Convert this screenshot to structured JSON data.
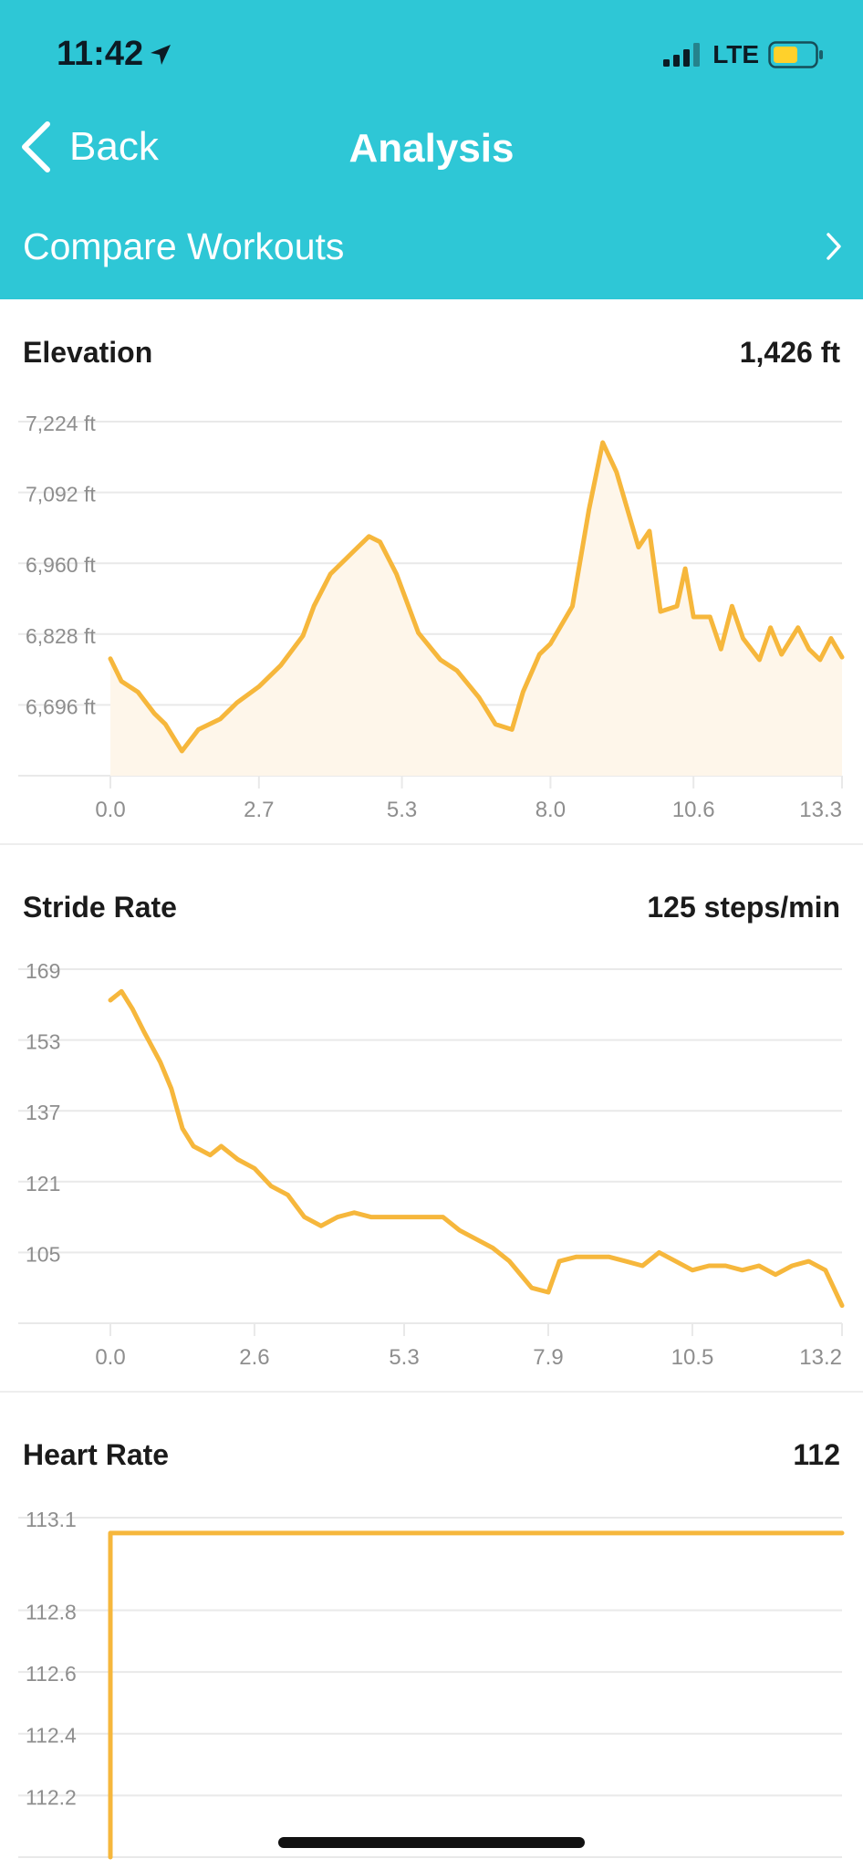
{
  "status_bar": {
    "time": "11:42",
    "network": "LTE"
  },
  "nav": {
    "back_label": "Back",
    "title": "Analysis"
  },
  "compare": {
    "label": "Compare Workouts"
  },
  "colors": {
    "header": "#2ec7d6",
    "series": "#f6b73c",
    "fill": "#fef6ea",
    "grid": "#e9e9e9"
  },
  "charts": {
    "elevation": {
      "title": "Elevation",
      "value": "1,426 ft"
    },
    "stride": {
      "title": "Stride Rate",
      "value": "125 steps/min"
    },
    "heart": {
      "title": "Heart Rate",
      "value": "112"
    }
  },
  "chart_data": [
    {
      "type": "area",
      "title": "Elevation",
      "summary": "1,426 ft",
      "ylim": [
        6564,
        7224
      ],
      "y_ticks": [
        7224,
        7092,
        6960,
        6828,
        6696
      ],
      "y_tick_labels": [
        "7,224 ft",
        "7,092 ft",
        "6,960 ft",
        "6,828 ft",
        "6,696 ft"
      ],
      "xlim": [
        0,
        13.3
      ],
      "x_ticks": [
        0.0,
        2.7,
        5.3,
        8.0,
        10.6,
        13.3
      ],
      "x_tick_labels": [
        "0.0",
        "2.7",
        "5.3",
        "8.0",
        "10.6",
        "13.3"
      ],
      "grid": true,
      "x": [
        0,
        0.2,
        0.5,
        0.8,
        1.0,
        1.3,
        1.6,
        2.0,
        2.3,
        2.7,
        3.1,
        3.5,
        3.7,
        4.0,
        4.4,
        4.7,
        4.9,
        5.2,
        5.6,
        6.0,
        6.3,
        6.7,
        7.0,
        7.3,
        7.5,
        7.8,
        8.0,
        8.4,
        8.7,
        8.95,
        9.2,
        9.6,
        9.8,
        10.0,
        10.3,
        10.45,
        10.6,
        10.9,
        11.1,
        11.3,
        11.5,
        11.8,
        12.0,
        12.2,
        12.5,
        12.7,
        12.9,
        13.1,
        13.3
      ],
      "y": [
        6782,
        6740,
        6720,
        6680,
        6660,
        6610,
        6650,
        6670,
        6700,
        6730,
        6770,
        6825,
        6880,
        6940,
        6980,
        7010,
        7000,
        6940,
        6830,
        6780,
        6760,
        6710,
        6660,
        6650,
        6720,
        6790,
        6810,
        6880,
        7060,
        7185,
        7130,
        6990,
        7020,
        6870,
        6880,
        6950,
        6860,
        6860,
        6800,
        6880,
        6820,
        6780,
        6840,
        6790,
        6840,
        6800,
        6780,
        6820,
        6785
      ]
    },
    {
      "type": "line",
      "title": "Stride Rate",
      "summary": "125 steps/min",
      "ylim": [
        89,
        169
      ],
      "y_ticks": [
        169,
        153,
        137,
        121,
        105
      ],
      "y_tick_labels": [
        "169",
        "153",
        "137",
        "121",
        "105"
      ],
      "xlim": [
        0,
        13.2
      ],
      "x_ticks": [
        0.0,
        2.6,
        5.3,
        7.9,
        10.5,
        13.2
      ],
      "x_tick_labels": [
        "0.0",
        "2.6",
        "5.3",
        "7.9",
        "10.5",
        "13.2"
      ],
      "grid": true,
      "x": [
        0,
        0.2,
        0.4,
        0.6,
        0.9,
        1.1,
        1.3,
        1.5,
        1.8,
        2.0,
        2.3,
        2.6,
        2.9,
        3.2,
        3.5,
        3.8,
        4.1,
        4.4,
        4.7,
        5.0,
        5.3,
        5.6,
        6.0,
        6.3,
        6.6,
        6.9,
        7.2,
        7.6,
        7.9,
        8.1,
        8.4,
        8.7,
        9.0,
        9.3,
        9.6,
        9.9,
        10.2,
        10.5,
        10.8,
        11.1,
        11.4,
        11.7,
        12.0,
        12.3,
        12.6,
        12.9,
        13.2
      ],
      "y": [
        162,
        164,
        160,
        155,
        148,
        142,
        133,
        129,
        127,
        129,
        126,
        124,
        120,
        118,
        113,
        111,
        113,
        114,
        113,
        113,
        113,
        113,
        113,
        110,
        108,
        106,
        103,
        97,
        96,
        103,
        104,
        104,
        104,
        103,
        102,
        105,
        103,
        101,
        102,
        102,
        101,
        102,
        100,
        102,
        103,
        101,
        93
      ]
    },
    {
      "type": "line",
      "title": "Heart Rate",
      "summary": "112",
      "ylim": [
        112.0,
        113.1
      ],
      "y_ticks": [
        113.1,
        112.8,
        112.6,
        112.4,
        112.2
      ],
      "y_tick_labels": [
        "113.1",
        "112.8",
        "112.6",
        "112.4",
        "112.2"
      ],
      "xlim": [
        0,
        13.2
      ],
      "grid": true,
      "x": [
        0,
        0,
        13.2
      ],
      "y": [
        112.0,
        113.05,
        113.05
      ]
    }
  ]
}
